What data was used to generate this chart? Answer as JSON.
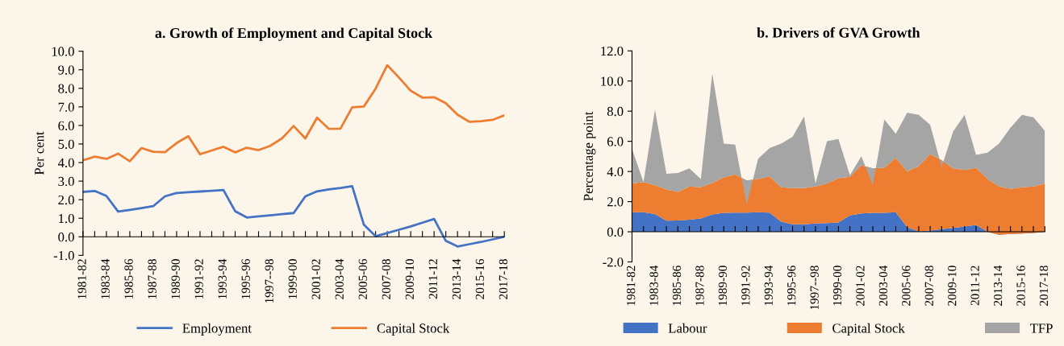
{
  "chart_data": [
    {
      "type": "line",
      "title": "a. Growth of Employment and Capital Stock",
      "ylabel": "Per cent",
      "categories": [
        "1981-82",
        null,
        "1983-84",
        null,
        "1985-86",
        null,
        "1987-88",
        null,
        "1989-90",
        null,
        "1991-92",
        null,
        "1993-94",
        null,
        "1995-96",
        null,
        "1997--98",
        null,
        "1999-00",
        null,
        "2001-02",
        null,
        "2003-04",
        null,
        "2005-06",
        null,
        "2007-08",
        null,
        "2009-10",
        null,
        "2011-12",
        null,
        "2013-14",
        null,
        "2015-16",
        null,
        "2017-18"
      ],
      "series": [
        {
          "name": "Employment",
          "color": "#4472c4",
          "values": [
            2.42,
            2.47,
            2.2,
            1.36,
            1.45,
            1.55,
            1.65,
            2.18,
            2.36,
            2.4,
            2.44,
            2.48,
            2.52,
            1.38,
            1.04,
            1.1,
            1.16,
            1.22,
            1.28,
            2.18,
            2.45,
            2.55,
            2.63,
            2.73,
            0.65,
            0.03,
            0.2,
            0.38,
            0.56,
            0.76,
            0.96,
            -0.22,
            -0.52,
            -0.4,
            -0.28,
            -0.14,
            0.0
          ]
        },
        {
          "name": "Capital Stock",
          "color": "#ed7d31",
          "values": [
            4.12,
            4.32,
            4.2,
            4.48,
            4.07,
            4.78,
            4.58,
            4.56,
            5.05,
            5.42,
            4.45,
            4.65,
            4.85,
            4.55,
            4.8,
            4.67,
            4.9,
            5.3,
            5.97,
            5.3,
            6.42,
            5.82,
            5.83,
            6.98,
            7.02,
            7.98,
            9.25,
            8.58,
            7.87,
            7.5,
            7.52,
            7.2,
            6.58,
            6.2,
            6.23,
            6.3,
            6.55
          ]
        }
      ],
      "ylim": [
        -1,
        10
      ],
      "yticks": [
        {
          "value": -1,
          "label": "-1.0"
        },
        {
          "value": 0,
          "label": "0.0"
        },
        {
          "value": 1,
          "label": "1.0"
        },
        {
          "value": 2,
          "label": "2.0"
        },
        {
          "value": 3,
          "label": "3.0"
        },
        {
          "value": 4,
          "label": "4.0"
        },
        {
          "value": 5,
          "label": "5.0"
        },
        {
          "value": 6,
          "label": "6.0"
        },
        {
          "value": 7,
          "label": "7.0"
        },
        {
          "value": 8,
          "label": "8.0"
        },
        {
          "value": 9,
          "label": "9.0"
        },
        {
          "value": 10,
          "label": "10.0"
        }
      ],
      "legend": "bottom",
      "line_style": "solid",
      "marker": "none"
    },
    {
      "type": "area",
      "stacked": true,
      "title": "b. Drivers of GVA Growth",
      "ylabel": "Percentage point",
      "categories": [
        "1981-82",
        null,
        "1983-84",
        null,
        "1985-86",
        null,
        "1987-88",
        null,
        "1989-90",
        null,
        "1991-92",
        null,
        "1993-94",
        null,
        "1995-96",
        null,
        "1997--98",
        null,
        "1999-00",
        null,
        "2001-02",
        null,
        "2003-04",
        null,
        "2005-06",
        null,
        "2007-08",
        null,
        "2009-10",
        null,
        "2011-12",
        null,
        "2013-14",
        null,
        "2015-16",
        null,
        "2017-18"
      ],
      "series": [
        {
          "name": "Labour",
          "color": "#4472c4",
          "values": [
            1.3,
            1.3,
            1.17,
            0.73,
            0.75,
            0.8,
            0.88,
            1.15,
            1.25,
            1.27,
            1.27,
            1.3,
            1.27,
            0.67,
            0.5,
            0.5,
            0.55,
            0.58,
            0.62,
            1.08,
            1.22,
            1.25,
            1.25,
            1.3,
            0.3,
            0.03,
            0.08,
            0.17,
            0.25,
            0.35,
            0.45,
            0.0,
            -0.2,
            -0.15,
            -0.12,
            -0.08,
            0.0
          ]
        },
        {
          "name": "Capital Stock",
          "color": "#ed7d31",
          "values": [
            1.9,
            2.0,
            1.93,
            2.07,
            1.9,
            2.2,
            2.07,
            2.1,
            2.35,
            2.53,
            2.13,
            2.2,
            2.4,
            2.28,
            2.4,
            2.4,
            2.45,
            2.62,
            2.93,
            2.57,
            3.18,
            2.95,
            3.0,
            3.6,
            3.7,
            4.32,
            5.07,
            4.58,
            3.95,
            3.75,
            3.8,
            3.5,
            3.2,
            3.0,
            3.07,
            3.08,
            3.2
          ]
        },
        {
          "name": "TFP",
          "color": "#a5a5a5",
          "values": [
            2.3,
            0.0,
            5.0,
            1.05,
            1.25,
            1.2,
            0.55,
            7.25,
            2.25,
            1.98,
            -1.6,
            1.35,
            1.88,
            2.9,
            3.4,
            4.75,
            0.2,
            2.8,
            2.6,
            0.1,
            0.6,
            -1.1,
            3.2,
            1.6,
            3.9,
            3.4,
            1.95,
            -0.45,
            2.45,
            3.65,
            0.85,
            1.75,
            2.85,
            4.05,
            4.8,
            4.6,
            3.5
          ]
        }
      ],
      "ylim": [
        -2,
        12
      ],
      "yticks": [
        {
          "value": -2,
          "label": "-2.0"
        },
        {
          "value": 0,
          "label": "0.0"
        },
        {
          "value": 2,
          "label": "2.0"
        },
        {
          "value": 4,
          "label": "4.0"
        },
        {
          "value": 6,
          "label": "6.0"
        },
        {
          "value": 8,
          "label": "8.0"
        },
        {
          "value": 10,
          "label": "10.0"
        },
        {
          "value": 12,
          "label": "12.0"
        }
      ],
      "legend": "bottom"
    }
  ]
}
